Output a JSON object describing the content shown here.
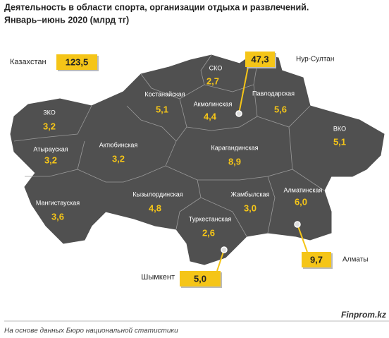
{
  "header": {
    "title": "Деятельность в области спорта, организации отдыха и развлечений.",
    "subtitle": "Январь–июнь 2020 (млрд тг)"
  },
  "total": {
    "label": "Казахстан",
    "value": "123,5"
  },
  "regions": [
    {
      "name": "ЗКО",
      "value": "3,2"
    },
    {
      "name": "Атырауская",
      "value": "3,2"
    },
    {
      "name": "Мангистауская",
      "value": "3,6"
    },
    {
      "name": "Актюбинская",
      "value": "3,2"
    },
    {
      "name": "Костанайская",
      "value": "5,1"
    },
    {
      "name": "СКО",
      "value": "2,7"
    },
    {
      "name": "Акмолинская",
      "value": "4,4"
    },
    {
      "name": "Павлодарская",
      "value": "5,6"
    },
    {
      "name": "ВКО",
      "value": "5,1"
    },
    {
      "name": "Карагандинская",
      "value": "8,9"
    },
    {
      "name": "Кызылординская",
      "value": "4,8"
    },
    {
      "name": "Жамбылская",
      "value": "3,0"
    },
    {
      "name": "Алматинская",
      "value": "6,0"
    },
    {
      "name": "Туркестанская",
      "value": "2,6"
    }
  ],
  "cities": [
    {
      "name": "Нур-Султан",
      "value": "47,3"
    },
    {
      "name": "Алматы",
      "value": "9,7"
    },
    {
      "name": "Шымкент",
      "value": "5,0"
    }
  ],
  "footer": {
    "source": "Finprom.kz",
    "note": "На основе данных Бюро национальной статистики"
  }
}
